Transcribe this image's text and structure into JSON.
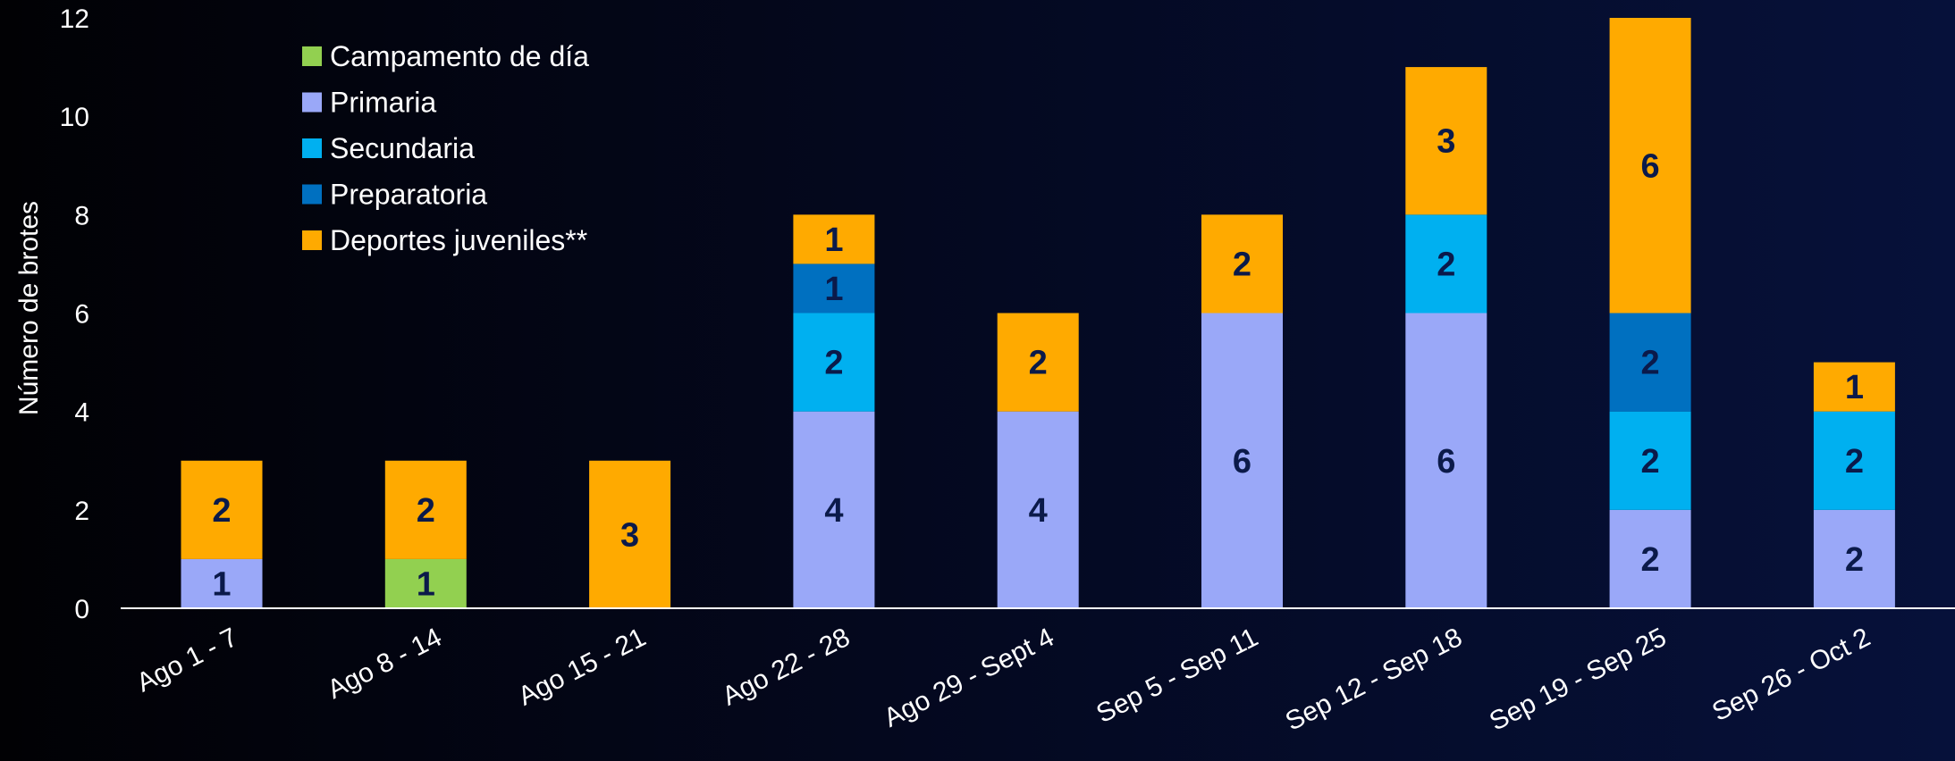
{
  "chart_data": {
    "type": "bar",
    "stacked": true,
    "ylabel": "Número de brotes",
    "xlabel": "",
    "ylim": [
      0,
      12
    ],
    "yticks": [
      0,
      2,
      4,
      6,
      8,
      10,
      12
    ],
    "grid": false,
    "legend_position": "top-left",
    "categories": [
      "Ago 1 - 7",
      "Ago 8 - 14",
      "Ago 15 - 21",
      "Ago 22 - 28",
      "Ago 29 - Sept 4",
      "Sep 5 - Sep 11",
      "Sep 12 - Sep 18",
      "Sep 19 - Sep 25",
      "Sep 26 - Oct 2"
    ],
    "series": [
      {
        "name": "Campamento de día",
        "color": "#92d050",
        "values": [
          0,
          1,
          0,
          0,
          0,
          0,
          0,
          0,
          0
        ]
      },
      {
        "name": "Primaria",
        "color": "#9aa8f8",
        "values": [
          1,
          0,
          0,
          4,
          4,
          6,
          6,
          2,
          2
        ]
      },
      {
        "name": "Secundaria",
        "color": "#00b0f0",
        "values": [
          0,
          0,
          0,
          2,
          0,
          0,
          2,
          2,
          2
        ]
      },
      {
        "name": "Preparatoria",
        "color": "#0070c0",
        "values": [
          0,
          0,
          0,
          1,
          0,
          0,
          0,
          2,
          0
        ]
      },
      {
        "name": "Deportes juveniles**",
        "color": "#ffaa00",
        "values": [
          2,
          2,
          3,
          1,
          2,
          2,
          3,
          6,
          1
        ]
      }
    ]
  }
}
